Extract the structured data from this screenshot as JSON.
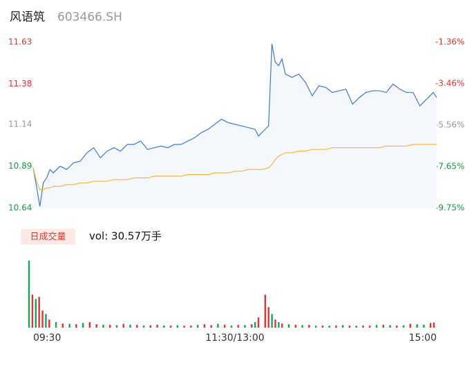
{
  "chart_data": [
    {
      "type": "line",
      "title": "风语筑",
      "subtitle": "603466.SH",
      "x": [
        0,
        2,
        4,
        6,
        8,
        10,
        12,
        16,
        20,
        24,
        28,
        32,
        36,
        40,
        44,
        48,
        52,
        56,
        60,
        64,
        68,
        72,
        76,
        80,
        84,
        88,
        92,
        96,
        100,
        104,
        108,
        112,
        116,
        120,
        124,
        128,
        132,
        134,
        136,
        140,
        142,
        144,
        146,
        148,
        150,
        154,
        158,
        162,
        166,
        170,
        174,
        178,
        182,
        186,
        190,
        194,
        198,
        202,
        206,
        210,
        214,
        218,
        222,
        226,
        230,
        234,
        238,
        240
      ],
      "xlim": [
        0,
        240
      ],
      "xticks": [
        {
          "value": 0,
          "label": "09:30"
        },
        {
          "value": 120,
          "label": "11:30/13:00"
        },
        {
          "value": 240,
          "label": "15:00"
        }
      ],
      "ylim": [
        10.64,
        11.63
      ],
      "yticks": [
        11.63,
        11.38,
        11.14,
        10.89,
        10.64
      ],
      "y2lim": [
        -9.75,
        -1.36
      ],
      "y2ticks": [
        {
          "value": -1.36,
          "label": "-1.36%"
        },
        {
          "value": -3.46,
          "label": "-3.46%"
        },
        {
          "value": -5.56,
          "label": "-5.56%"
        },
        {
          "value": -7.65,
          "label": "-7.65%"
        },
        {
          "value": -9.75,
          "label": "-9.75%"
        }
      ],
      "tick_colors": [
        "#e8312f",
        "#e8312f",
        "#999999",
        "#1a9a4a",
        "#1a9a4a"
      ],
      "grid": false,
      "area_color": "#f4f7fc",
      "series": [
        {
          "color": "#3f78d8",
          "values": [
            10.88,
            10.77,
            10.65,
            10.79,
            10.82,
            10.87,
            10.85,
            10.89,
            10.87,
            10.91,
            10.92,
            10.97,
            11.0,
            10.94,
            10.98,
            11.0,
            10.98,
            11.02,
            11.02,
            11.04,
            10.99,
            11.0,
            11.01,
            11.0,
            11.02,
            11.02,
            11.04,
            11.06,
            11.09,
            11.11,
            11.14,
            11.17,
            11.15,
            11.14,
            11.13,
            11.12,
            11.11,
            11.07,
            11.09,
            11.13,
            11.62,
            11.51,
            11.49,
            11.53,
            11.44,
            11.42,
            11.44,
            11.39,
            11.31,
            11.37,
            11.36,
            11.33,
            11.34,
            11.35,
            11.26,
            11.3,
            11.33,
            11.34,
            11.34,
            11.33,
            11.38,
            11.35,
            11.33,
            11.33,
            11.25,
            11.29,
            11.33,
            11.3
          ]
        },
        {
          "color": "#f5b63c",
          "values": [
            10.88,
            10.8,
            10.75,
            10.75,
            10.76,
            10.76,
            10.77,
            10.77,
            10.78,
            10.78,
            10.79,
            10.79,
            10.8,
            10.8,
            10.8,
            10.81,
            10.81,
            10.81,
            10.82,
            10.82,
            10.82,
            10.83,
            10.83,
            10.83,
            10.83,
            10.83,
            10.84,
            10.84,
            10.84,
            10.84,
            10.85,
            10.85,
            10.85,
            10.86,
            10.86,
            10.87,
            10.87,
            10.87,
            10.87,
            10.88,
            10.9,
            10.93,
            10.95,
            10.96,
            10.97,
            10.97,
            10.98,
            10.98,
            10.99,
            10.99,
            10.99,
            11.0,
            11.0,
            11.0,
            11.0,
            11.0,
            11.0,
            11.0,
            11.0,
            11.01,
            11.01,
            11.01,
            11.01,
            11.02,
            11.02,
            11.02,
            11.02,
            11.02
          ]
        }
      ]
    },
    {
      "type": "bar",
      "badge": "日成交量",
      "label": "vol: 30.57万手",
      "x": [
        0,
        2,
        4,
        6,
        8,
        10,
        12,
        16,
        20,
        24,
        28,
        32,
        36,
        40,
        44,
        48,
        52,
        56,
        60,
        64,
        68,
        72,
        76,
        80,
        84,
        88,
        92,
        96,
        100,
        104,
        108,
        112,
        116,
        120,
        124,
        128,
        132,
        134,
        136,
        140,
        142,
        144,
        146,
        148,
        150,
        154,
        158,
        162,
        166,
        170,
        174,
        178,
        182,
        186,
        190,
        194,
        198,
        202,
        206,
        210,
        214,
        218,
        222,
        226,
        230,
        234,
        238,
        240
      ],
      "xlim": [
        0,
        240
      ],
      "ylim": [
        0,
        16000
      ],
      "values": [
        15700,
        7700,
        6700,
        7200,
        4000,
        3200,
        1900,
        1300,
        960,
        900,
        800,
        1100,
        1300,
        800,
        700,
        640,
        600,
        900,
        700,
        650,
        500,
        550,
        700,
        500,
        480,
        600,
        450,
        500,
        650,
        800,
        600,
        900,
        700,
        500,
        640,
        600,
        800,
        1300,
        2400,
        7700,
        4800,
        3200,
        1900,
        1300,
        960,
        800,
        700,
        600,
        640,
        500,
        480,
        450,
        500,
        600,
        480,
        450,
        500,
        480,
        640,
        700,
        600,
        500,
        550,
        900,
        800,
        700,
        1100,
        1200
      ],
      "colors": [
        "#19a15f",
        "#e8312f",
        "#19a15f",
        "#e8312f",
        "#e8312f",
        "#19a15f",
        "#e8312f",
        "#19a15f",
        "#e8312f",
        "#19a15f",
        "#e8312f",
        "#19a15f",
        "#e8312f",
        "#e8312f",
        "#19a15f",
        "#e8312f",
        "#19a15f",
        "#e8312f",
        "#19a15f",
        "#e8312f",
        "#19a15f",
        "#e8312f",
        "#e8312f",
        "#19a15f",
        "#e8312f",
        "#19a15f",
        "#e8312f",
        "#e8312f",
        "#19a15f",
        "#e8312f",
        "#e8312f",
        "#19a15f",
        "#e8312f",
        "#19a15f",
        "#e8312f",
        "#19a15f",
        "#e8312f",
        "#19a15f",
        "#e8312f",
        "#e8312f",
        "#e8312f",
        "#19a15f",
        "#e8312f",
        "#19a15f",
        "#e8312f",
        "#19a15f",
        "#e8312f",
        "#19a15f",
        "#e8312f",
        "#19a15f",
        "#e8312f",
        "#19a15f",
        "#e8312f",
        "#19a15f",
        "#e8312f",
        "#19a15f",
        "#e8312f",
        "#e8312f",
        "#19a15f",
        "#e8312f",
        "#19a15f",
        "#e8312f",
        "#19a15f",
        "#e8312f",
        "#19a15f",
        "#19a15f",
        "#e8312f",
        "#e8312f"
      ]
    }
  ]
}
